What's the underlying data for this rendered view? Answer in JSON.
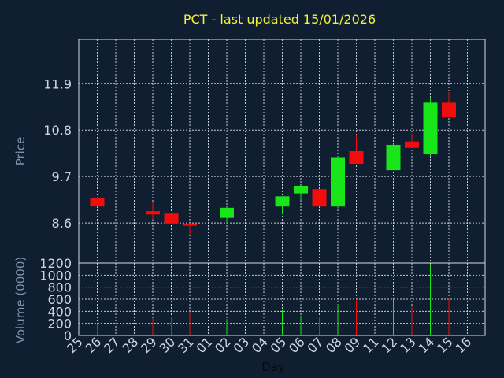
{
  "colors": {
    "background": "#0f1e30",
    "up": "#19e619",
    "down": "#f20d0d",
    "title": "#f2f23a",
    "tick_text": "#cfd6de",
    "axis_label": "#7f95ad",
    "grid": "#c8ccd2"
  },
  "chart_data": {
    "type": "candlestick",
    "title": "PCT - last updated 15/01/2026",
    "xlabel": "Day",
    "price_panel": {
      "ylabel": "Price",
      "yticks": [
        "8.6",
        "9.7",
        "10.8",
        "11.9"
      ],
      "ylim": [
        7.65,
        12.95
      ],
      "grid": true
    },
    "volume_panel": {
      "ylabel": "Volume (0000)",
      "yticks": [
        "0",
        "200",
        "400",
        "600",
        "800",
        "1000",
        "1200"
      ],
      "ylim": [
        0,
        1200
      ],
      "grid": true
    },
    "x_ticks": [
      "25",
      "26",
      "27",
      "28",
      "29",
      "30",
      "31",
      "01",
      "02",
      "03",
      "04",
      "05",
      "06",
      "07",
      "08",
      "09",
      "11",
      "12",
      "13",
      "14",
      "15",
      "16"
    ],
    "candles": [
      {
        "day": "26",
        "open": 9.2,
        "close": 8.99,
        "high": 9.22,
        "low": 8.99,
        "volume": 200
      },
      {
        "day": "29",
        "open": 8.88,
        "close": 8.8,
        "high": 9.1,
        "low": 8.68,
        "volume": 280
      },
      {
        "day": "30",
        "open": 8.82,
        "close": 8.59,
        "high": 8.82,
        "low": 8.56,
        "volume": 300
      },
      {
        "day": "31",
        "open": 8.57,
        "close": 8.54,
        "high": 8.6,
        "low": 8.32,
        "volume": 400
      },
      {
        "day": "02",
        "open": 8.72,
        "close": 8.96,
        "high": 8.98,
        "low": 8.58,
        "volume": 270
      },
      {
        "day": "05",
        "open": 8.99,
        "close": 9.23,
        "high": 9.23,
        "low": 8.8,
        "volume": 420
      },
      {
        "day": "06",
        "open": 9.3,
        "close": 9.48,
        "high": 9.48,
        "low": 9.14,
        "volume": 330
      },
      {
        "day": "07",
        "open": 9.4,
        "close": 8.99,
        "high": 9.4,
        "low": 8.99,
        "volume": 310
      },
      {
        "day": "08",
        "open": 8.99,
        "close": 10.16,
        "high": 10.18,
        "low": 8.95,
        "volume": 520
      },
      {
        "day": "09",
        "open": 10.3,
        "close": 10.0,
        "high": 10.7,
        "low": 10.0,
        "volume": 600
      },
      {
        "day": "12",
        "open": 9.85,
        "close": 10.45,
        "high": 10.47,
        "low": 9.85,
        "volume": 600
      },
      {
        "day": "13",
        "open": 10.53,
        "close": 10.38,
        "high": 10.72,
        "low": 10.38,
        "volume": 480
      },
      {
        "day": "14",
        "open": 10.23,
        "close": 11.45,
        "high": 11.58,
        "low": 10.18,
        "volume": 1180
      },
      {
        "day": "15",
        "open": 11.45,
        "close": 11.1,
        "high": 11.7,
        "low": 11.1,
        "volume": 620
      }
    ]
  }
}
